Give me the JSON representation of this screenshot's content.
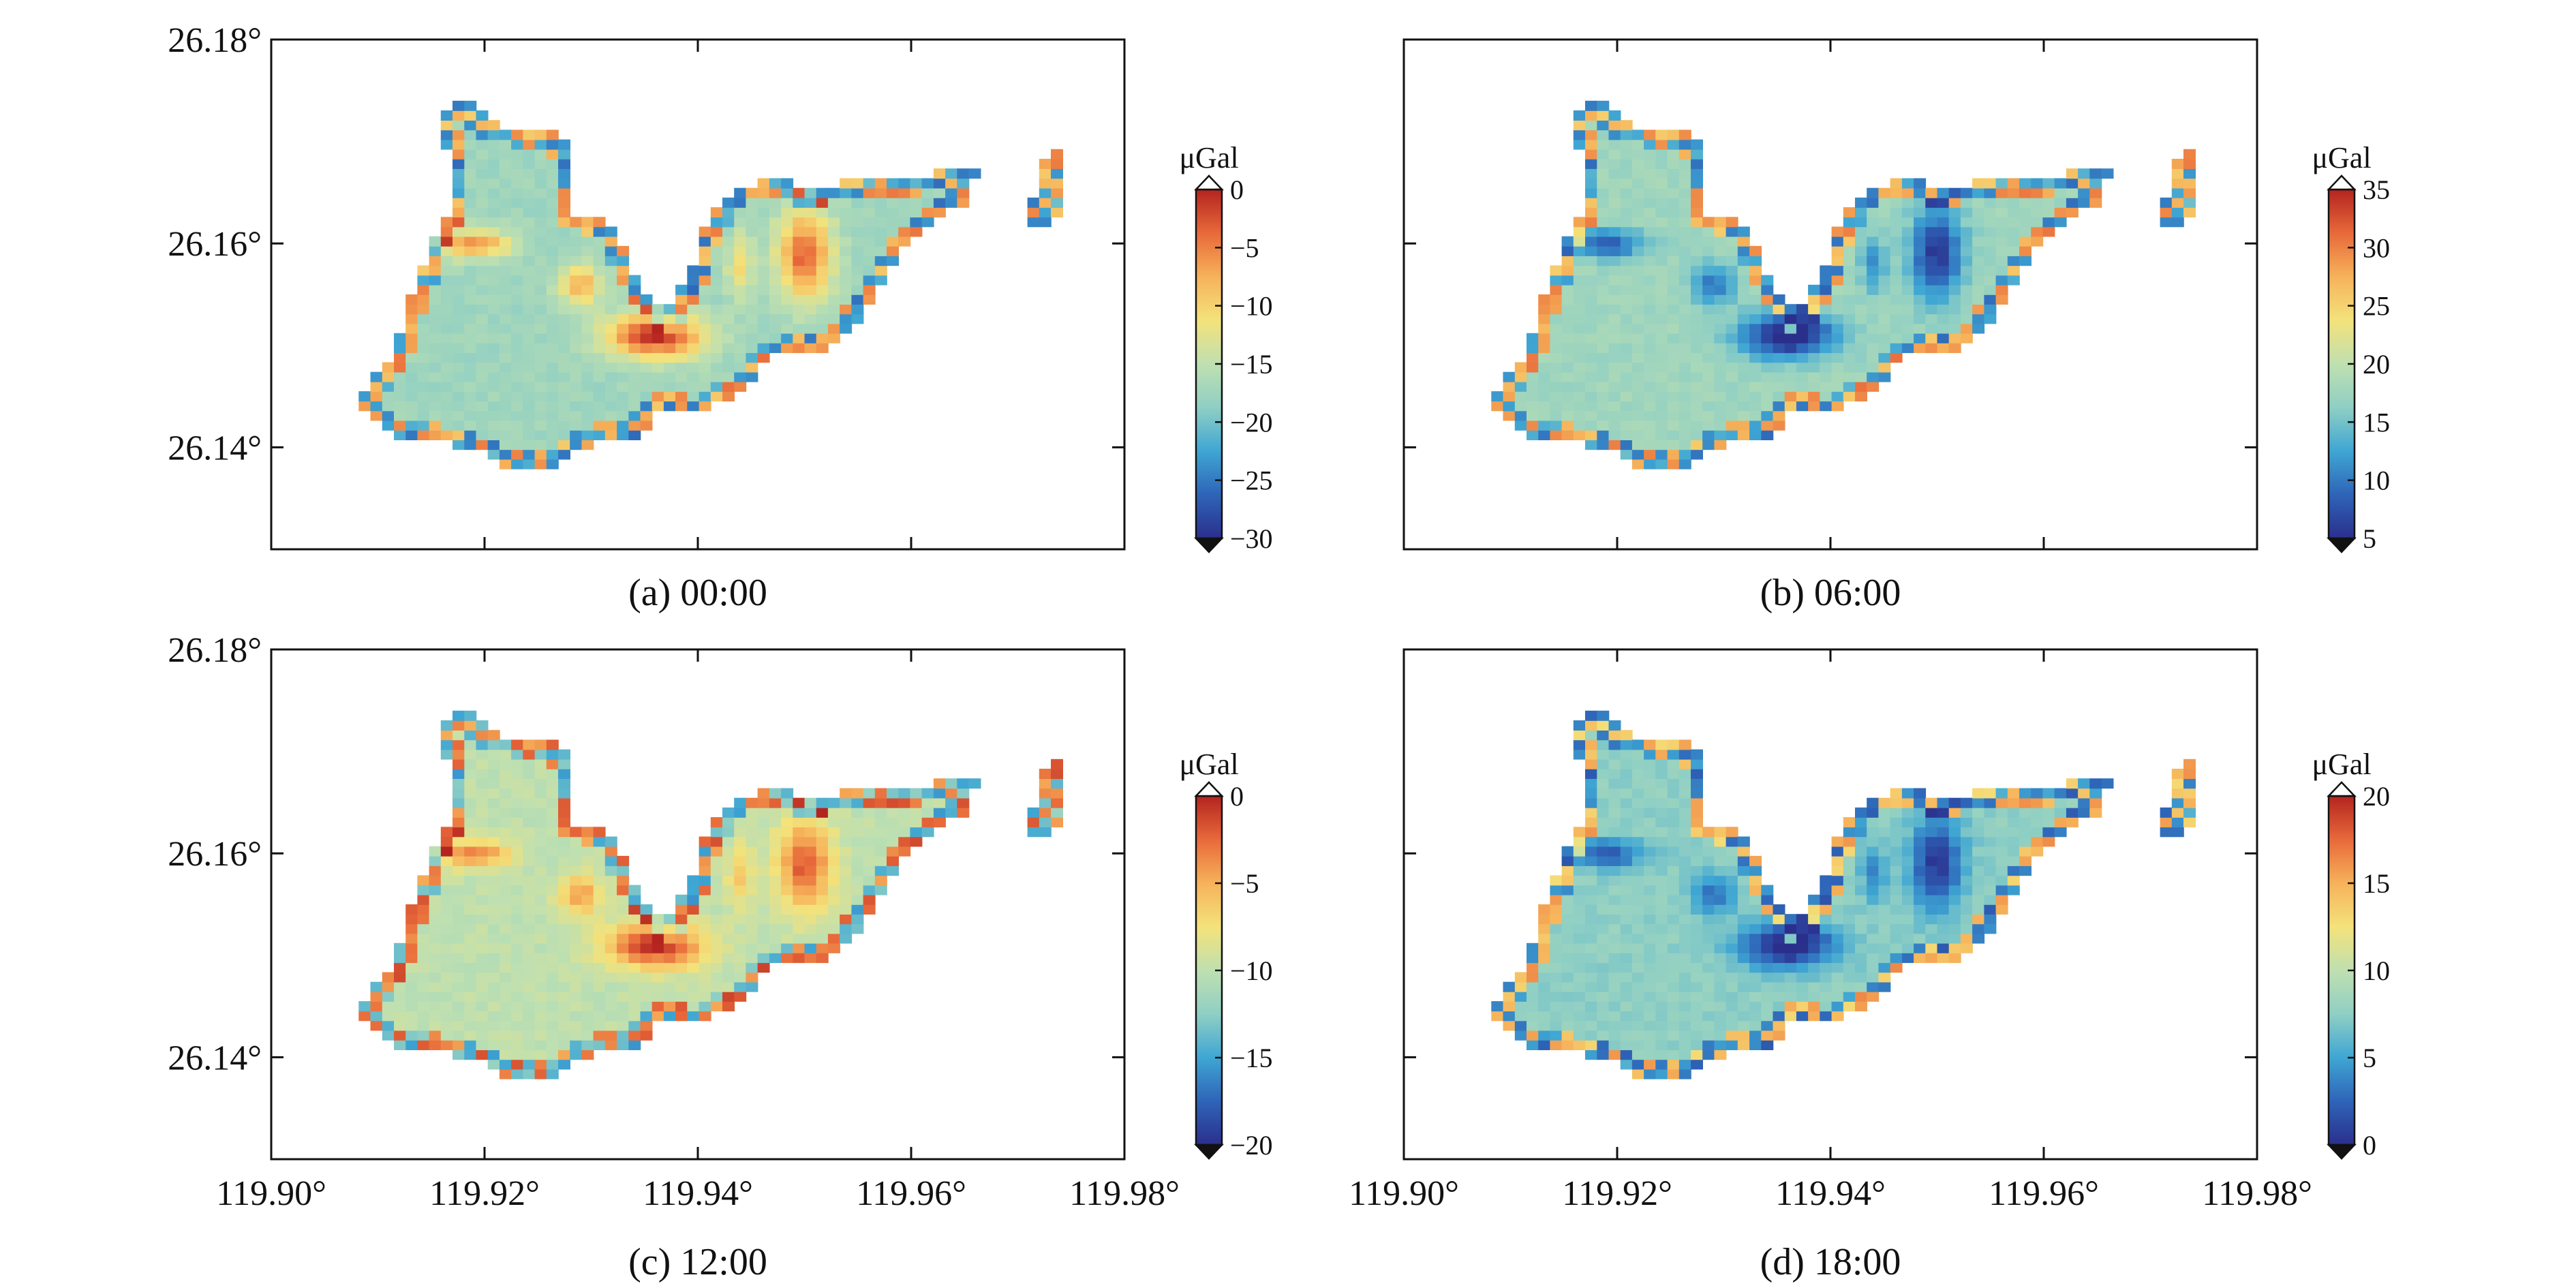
{
  "colormap": [
    "#2b2f8c",
    "#2e64b8",
    "#3fa6d3",
    "#8fcfc4",
    "#bfe0b0",
    "#f4e27a",
    "#f6b25a",
    "#e8693a",
    "#b3241f"
  ],
  "chart_data": [
    {
      "type": "heatmap",
      "caption": "(a) 00:00",
      "xlim": [
        119.9,
        119.98
      ],
      "ylim": [
        26.13,
        26.18
      ],
      "x_ticks": [
        119.9,
        119.92,
        119.94,
        119.96,
        119.98
      ],
      "y_ticks": [
        26.14,
        26.16,
        26.18
      ],
      "x_tick_labels": [],
      "y_tick_labels": [
        "26.14°",
        "26.16°",
        "26.18°"
      ],
      "colorbar": {
        "unit": "μGal",
        "min": -30,
        "max": 0,
        "ticks": [
          0,
          -5,
          -10,
          -15,
          -20,
          -25,
          -30
        ],
        "tick_labels": [
          "0",
          "−5",
          "−10",
          "−15",
          "−20",
          "−25",
          "−30"
        ]
      },
      "field": {
        "base": 0.42,
        "hot_gain": 0.58,
        "cold_gain": 0.0,
        "edge_noise": 0.3
      }
    },
    {
      "type": "heatmap",
      "caption": "(b) 06:00",
      "xlim": [
        119.9,
        119.98
      ],
      "ylim": [
        26.13,
        26.18
      ],
      "x_ticks": [
        119.9,
        119.92,
        119.94,
        119.96,
        119.98
      ],
      "y_ticks": [
        26.14,
        26.16,
        26.18
      ],
      "x_tick_labels": [],
      "y_tick_labels": [],
      "colorbar": {
        "unit": "μGal",
        "min": 5,
        "max": 35,
        "ticks": [
          35,
          30,
          25,
          20,
          15,
          10,
          5
        ],
        "tick_labels": [
          "35",
          "30",
          "25",
          "20",
          "15",
          "10",
          "5"
        ]
      },
      "field": {
        "base": 0.42,
        "hot_gain": 0.0,
        "cold_gain": 0.5,
        "edge_noise": 0.3
      }
    },
    {
      "type": "heatmap",
      "caption": "(c) 12:00",
      "xlim": [
        119.9,
        119.98
      ],
      "ylim": [
        26.13,
        26.18
      ],
      "x_ticks": [
        119.9,
        119.92,
        119.94,
        119.96,
        119.98
      ],
      "y_ticks": [
        26.14,
        26.16,
        26.18
      ],
      "x_tick_labels": [
        "119.90°",
        "119.92°",
        "119.94°",
        "119.96°",
        "119.98°"
      ],
      "y_tick_labels": [
        "26.14°",
        "26.16°",
        "26.18°"
      ],
      "colorbar": {
        "unit": "μGal",
        "min": -20,
        "max": 0,
        "ticks": [
          0,
          -5,
          -10,
          -15,
          -20
        ],
        "tick_labels": [
          "0",
          "−5",
          "−10",
          "−15",
          "−20"
        ]
      },
      "field": {
        "base": 0.5,
        "hot_gain": 0.5,
        "cold_gain": 0.0,
        "edge_noise": 0.3
      }
    },
    {
      "type": "heatmap",
      "caption": "(d) 18:00",
      "xlim": [
        119.9,
        119.98
      ],
      "ylim": [
        26.13,
        26.18
      ],
      "x_ticks": [
        119.9,
        119.92,
        119.94,
        119.96,
        119.98
      ],
      "y_ticks": [
        26.14,
        26.16,
        26.18
      ],
      "x_tick_labels": [
        "119.90°",
        "119.92°",
        "119.94°",
        "119.96°",
        "119.98°"
      ],
      "y_tick_labels": [],
      "colorbar": {
        "unit": "μGal",
        "min": 0,
        "max": 20,
        "ticks": [
          20,
          15,
          10,
          5,
          0
        ],
        "tick_labels": [
          "20",
          "15",
          "10",
          "5",
          "0"
        ]
      },
      "field": {
        "base": 0.38,
        "hot_gain": 0.0,
        "cold_gain": 0.45,
        "edge_noise": 0.3
      }
    }
  ]
}
